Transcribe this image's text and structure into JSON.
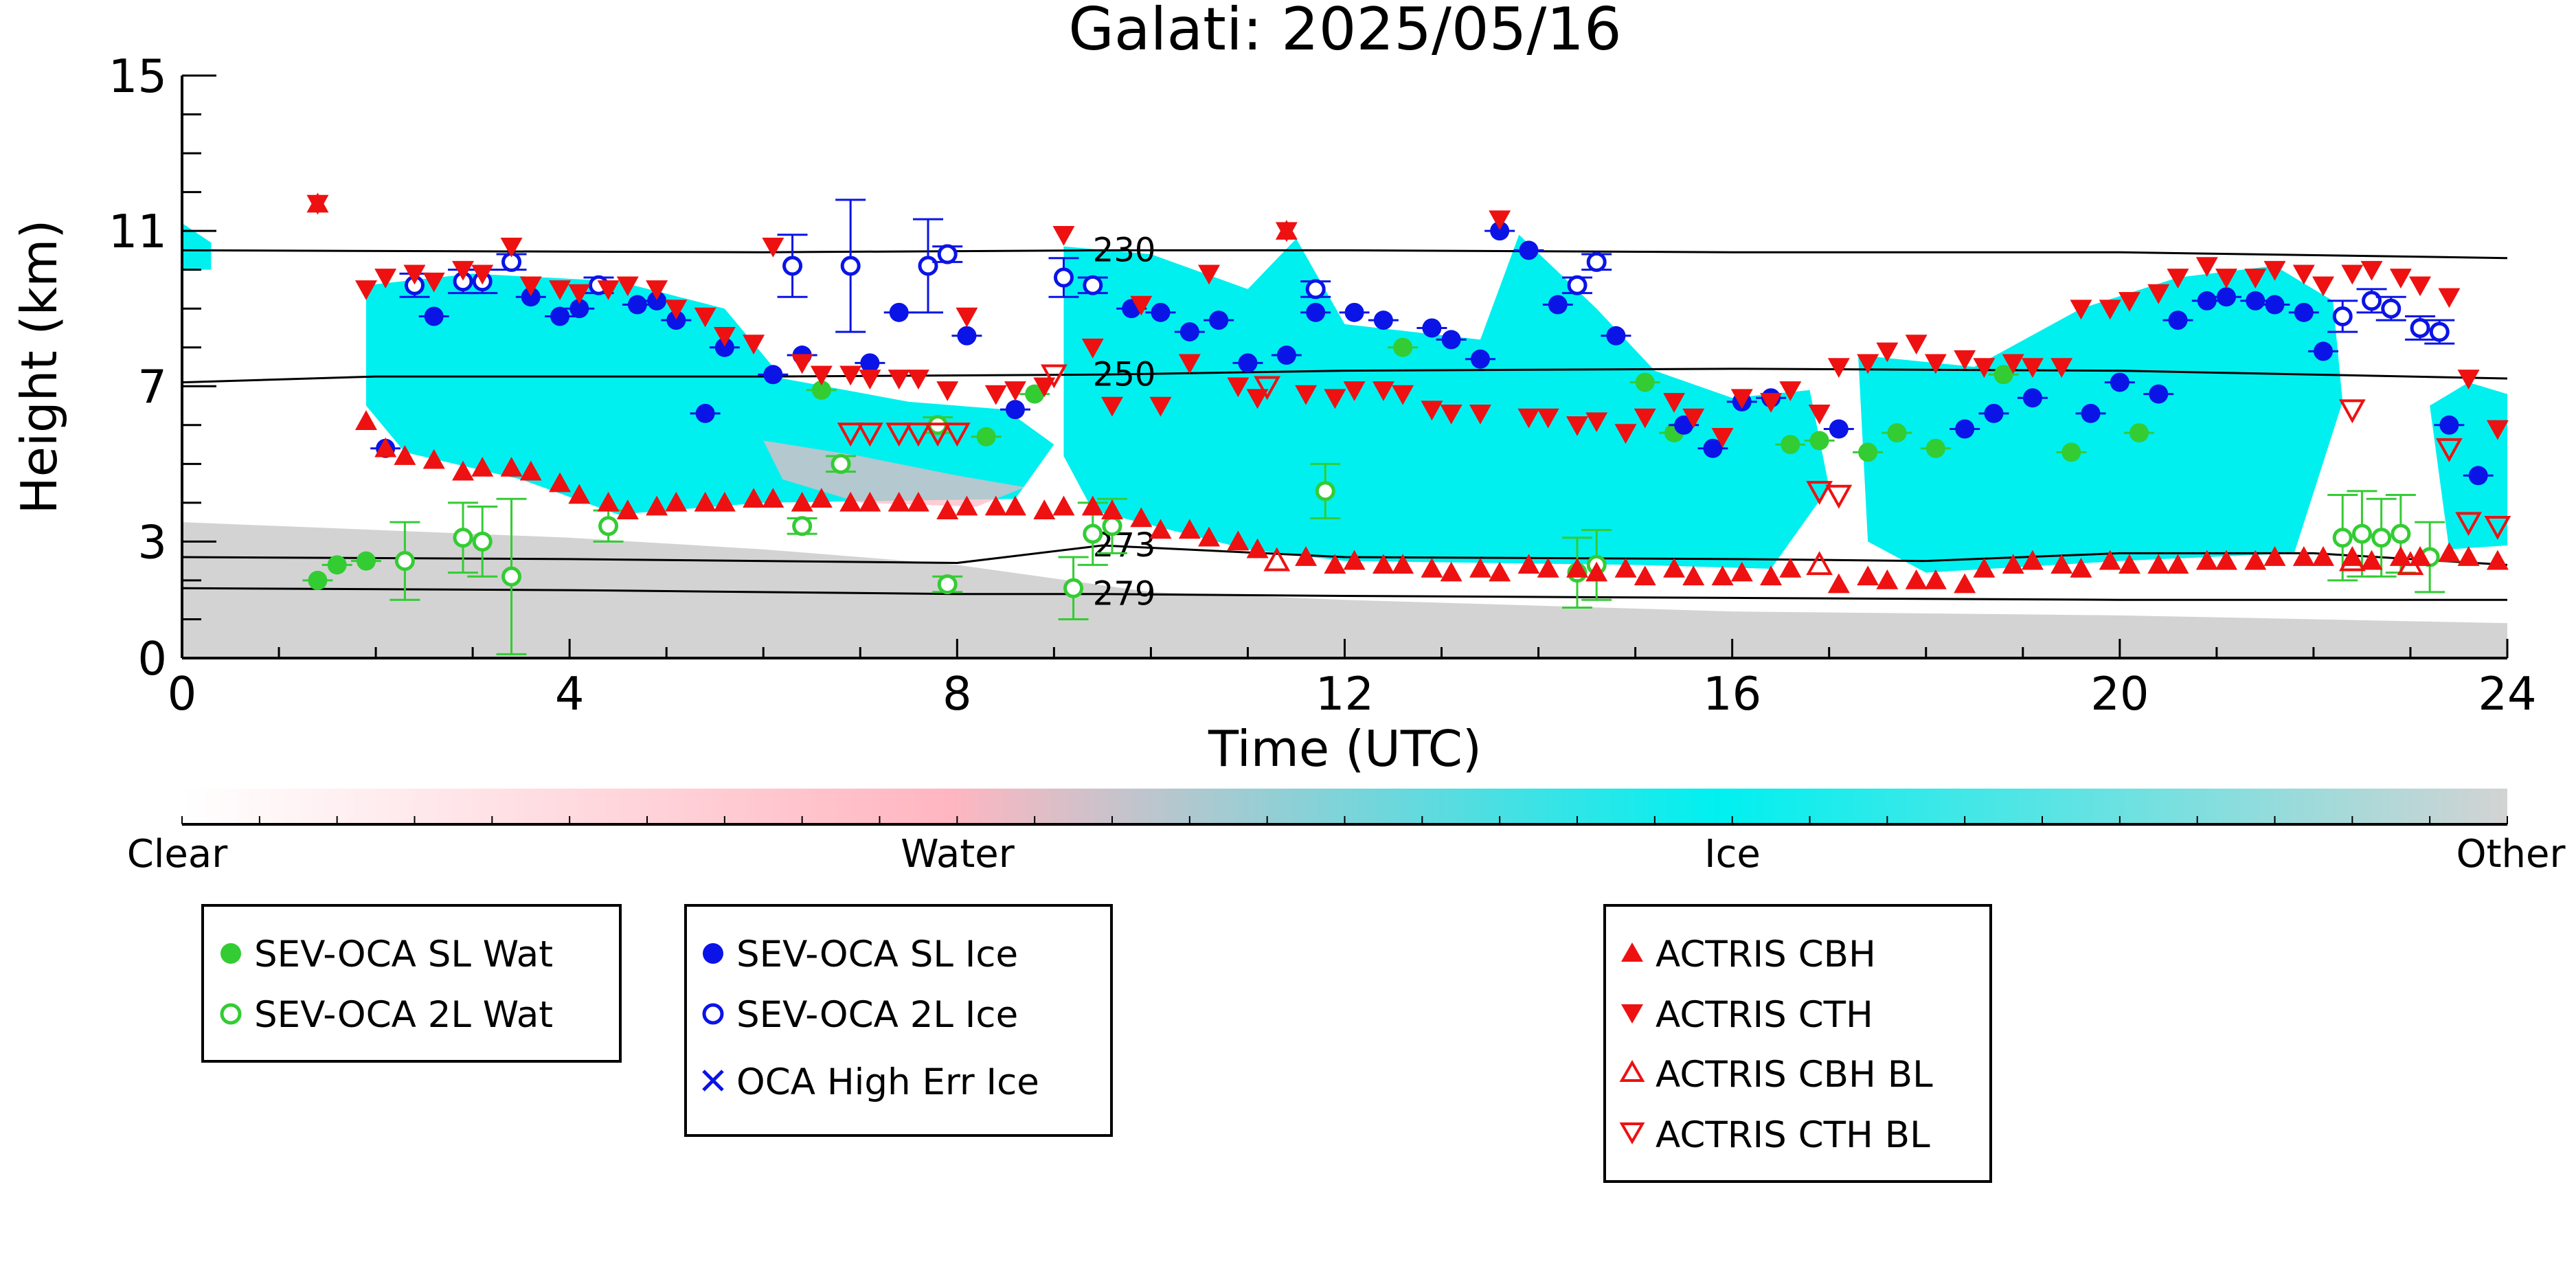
{
  "chart_data": {
    "type": "scatter",
    "title": "Galati: 2025/05/16",
    "xlabel": "Time (UTC)",
    "ylabel": "Height (km)",
    "xlim": [
      0,
      24
    ],
    "ylim": [
      0,
      15
    ],
    "xticks": [
      0,
      4,
      8,
      12,
      16,
      20,
      24
    ],
    "yticks": [
      0,
      3,
      7,
      11,
      15
    ],
    "colorbar": {
      "labels": [
        "Clear",
        "Water",
        "Ice",
        "Other"
      ],
      "colors": [
        "#ffffff",
        "#ffb6c1",
        "#00f0f0",
        "#d3d3d3"
      ]
    },
    "contours": [
      {
        "label": "230",
        "points": [
          [
            0,
            10.5
          ],
          [
            6,
            10.45
          ],
          [
            9.5,
            10.5
          ],
          [
            12,
            10.5
          ],
          [
            16,
            10.45
          ],
          [
            20,
            10.45
          ],
          [
            24,
            10.3
          ]
        ]
      },
      {
        "label": "250",
        "points": [
          [
            0,
            7.1
          ],
          [
            2,
            7.25
          ],
          [
            6,
            7.25
          ],
          [
            9.5,
            7.3
          ],
          [
            12,
            7.4
          ],
          [
            16,
            7.45
          ],
          [
            20,
            7.4
          ],
          [
            24,
            7.2
          ]
        ]
      },
      {
        "label": "273",
        "points": [
          [
            0,
            2.6
          ],
          [
            4,
            2.55
          ],
          [
            8,
            2.45
          ],
          [
            9.5,
            2.9
          ],
          [
            12,
            2.6
          ],
          [
            16,
            2.55
          ],
          [
            18,
            2.5
          ],
          [
            20,
            2.7
          ],
          [
            22,
            2.7
          ],
          [
            24,
            2.4
          ]
        ]
      },
      {
        "label": "279",
        "points": [
          [
            0,
            1.8
          ],
          [
            4,
            1.75
          ],
          [
            8,
            1.65
          ],
          [
            9.5,
            1.65
          ],
          [
            12,
            1.6
          ],
          [
            16,
            1.55
          ],
          [
            20,
            1.5
          ],
          [
            24,
            1.5
          ]
        ]
      }
    ],
    "series": [
      {
        "name": "SEV-OCA SL Wat",
        "color": "#33cc33",
        "marker": "circle-filled",
        "x": [
          1.4,
          1.6,
          1.9,
          6.6,
          8.3,
          8.8,
          12.6,
          15.1,
          15.4,
          16.6,
          16.9,
          17.4,
          17.7,
          18.1,
          18.8,
          19.5,
          20.2
        ],
        "y": [
          2.0,
          2.4,
          2.5,
          6.9,
          5.7,
          6.8,
          8.0,
          7.1,
          5.8,
          5.5,
          5.6,
          5.3,
          5.8,
          5.4,
          7.3,
          5.3,
          5.8
        ]
      },
      {
        "name": "SEV-OCA 2L Wat",
        "color": "#33cc33",
        "marker": "circle-open",
        "x": [
          2.3,
          2.9,
          3.1,
          3.4,
          4.4,
          6.4,
          6.8,
          7.8,
          7.9,
          9.2,
          9.4,
          9.6,
          11.8,
          14.4,
          14.6,
          22.3,
          22.5,
          22.7,
          22.9,
          23.2
        ],
        "y": [
          2.5,
          3.1,
          3.0,
          2.1,
          3.4,
          3.4,
          5.0,
          6.0,
          1.9,
          1.8,
          3.2,
          3.4,
          4.3,
          2.2,
          2.4,
          3.1,
          3.2,
          3.1,
          3.2,
          2.6
        ],
        "yerr": [
          1.0,
          0.9,
          0.9,
          2.0,
          0.4,
          0.2,
          0.2,
          0.2,
          0.2,
          0.8,
          0.8,
          0.7,
          0.7,
          0.9,
          0.9,
          1.1,
          1.1,
          1.0,
          1.0,
          0.9
        ]
      },
      {
        "name": "SEV-OCA SL Ice",
        "color": "#0a14e6",
        "marker": "circle-filled",
        "x": [
          2.1,
          2.6,
          3.6,
          3.9,
          4.1,
          4.7,
          4.9,
          5.1,
          5.4,
          5.6,
          6.1,
          6.4,
          7.1,
          7.4,
          8.1,
          8.6,
          9.8,
          10.1,
          10.4,
          10.7,
          11.0,
          11.4,
          11.7,
          12.1,
          12.4,
          12.9,
          13.1,
          13.4,
          13.6,
          13.9,
          14.2,
          14.8,
          15.5,
          15.8,
          16.1,
          16.4,
          17.1,
          18.4,
          18.7,
          19.1,
          19.7,
          20.0,
          20.4,
          20.6,
          20.9,
          21.1,
          21.4,
          21.6,
          21.9,
          22.1,
          23.4,
          23.7
        ],
        "y": [
          5.4,
          8.8,
          9.3,
          8.8,
          9.0,
          9.1,
          9.2,
          8.7,
          6.3,
          8.0,
          7.3,
          7.8,
          7.6,
          8.9,
          8.3,
          6.4,
          9.0,
          8.9,
          8.4,
          8.7,
          7.6,
          7.8,
          8.9,
          8.9,
          8.7,
          8.5,
          8.2,
          7.7,
          11.0,
          10.5,
          9.1,
          8.3,
          6.0,
          5.4,
          6.6,
          6.7,
          5.9,
          5.9,
          6.3,
          6.7,
          6.3,
          7.1,
          6.8,
          8.7,
          9.2,
          9.3,
          9.2,
          9.1,
          8.9,
          7.9,
          6.0,
          4.7
        ]
      },
      {
        "name": "SEV-OCA 2L Ice",
        "color": "#0a14e6",
        "marker": "circle-open",
        "x": [
          2.4,
          2.9,
          3.1,
          3.4,
          4.3,
          6.3,
          6.9,
          7.7,
          7.9,
          9.1,
          9.4,
          11.7,
          14.4,
          14.6,
          22.3,
          22.6,
          22.8,
          23.1,
          23.3
        ],
        "y": [
          9.6,
          9.7,
          9.7,
          10.2,
          9.6,
          10.1,
          10.1,
          10.1,
          10.4,
          9.8,
          9.6,
          9.5,
          9.6,
          10.2,
          8.8,
          9.2,
          9.0,
          8.5,
          8.4
        ],
        "yerr": [
          0.3,
          0.3,
          0.3,
          0.2,
          0.2,
          0.8,
          1.7,
          1.2,
          0.2,
          0.5,
          0.2,
          0.2,
          0.2,
          0.2,
          0.4,
          0.3,
          0.3,
          0.3,
          0.3
        ]
      },
      {
        "name": "OCA High Err Ice",
        "color": "#0a14e6",
        "marker": "x",
        "x": [],
        "y": []
      },
      {
        "name": "ACTRIS CBH",
        "color": "#ee1111",
        "marker": "triangle-up",
        "x": [
          1.4,
          1.9,
          2.1,
          2.3,
          2.6,
          2.9,
          3.1,
          3.4,
          3.6,
          3.9,
          4.1,
          4.4,
          4.6,
          4.9,
          5.1,
          5.4,
          5.6,
          5.9,
          6.1,
          6.4,
          6.6,
          6.9,
          7.1,
          7.4,
          7.6,
          7.9,
          8.1,
          8.4,
          8.6,
          8.9,
          9.1,
          9.4,
          9.6,
          9.9,
          10.1,
          10.4,
          10.6,
          10.9,
          11.1,
          11.4,
          11.6,
          11.9,
          12.1,
          12.4,
          12.6,
          12.9,
          13.1,
          13.4,
          13.6,
          13.9,
          14.1,
          14.4,
          14.6,
          14.9,
          15.1,
          15.4,
          15.6,
          15.9,
          16.1,
          16.4,
          16.6,
          17.1,
          17.4,
          17.6,
          17.9,
          18.1,
          18.4,
          18.6,
          18.9,
          19.1,
          19.4,
          19.6,
          19.9,
          20.1,
          20.4,
          20.6,
          20.9,
          21.1,
          21.4,
          21.6,
          21.9,
          22.1,
          22.4,
          22.6,
          22.9,
          23.1,
          23.4,
          23.6,
          23.9
        ],
        "y": [
          11.7,
          6.1,
          5.4,
          5.2,
          5.1,
          4.8,
          4.9,
          4.9,
          4.8,
          4.5,
          4.2,
          4.0,
          3.8,
          3.9,
          4.0,
          4.0,
          4.0,
          4.1,
          4.1,
          4.0,
          4.1,
          4.0,
          4.0,
          4.0,
          4.0,
          3.8,
          3.9,
          3.9,
          3.9,
          3.8,
          3.9,
          3.9,
          3.8,
          3.6,
          3.3,
          3.3,
          3.1,
          3.0,
          2.8,
          11.0,
          2.6,
          2.4,
          2.5,
          2.4,
          2.4,
          2.3,
          2.2,
          2.3,
          2.2,
          2.4,
          2.3,
          2.3,
          2.2,
          2.3,
          2.1,
          2.3,
          2.1,
          2.1,
          2.2,
          2.1,
          2.3,
          1.9,
          2.1,
          2.0,
          2.0,
          2.0,
          1.9,
          2.3,
          2.4,
          2.5,
          2.4,
          2.3,
          2.5,
          2.4,
          2.4,
          2.4,
          2.5,
          2.5,
          2.5,
          2.6,
          2.6,
          2.6,
          2.6,
          2.5,
          2.6,
          2.6,
          2.7,
          2.6,
          2.5
        ]
      },
      {
        "name": "ACTRIS CTH",
        "color": "#ee1111",
        "marker": "triangle-down",
        "x": [
          1.4,
          1.9,
          2.1,
          2.4,
          2.6,
          2.9,
          3.1,
          3.4,
          3.6,
          3.9,
          4.1,
          4.4,
          4.6,
          4.9,
          5.1,
          5.4,
          5.6,
          5.9,
          6.1,
          6.4,
          6.6,
          6.9,
          7.1,
          7.4,
          7.6,
          7.9,
          8.1,
          8.4,
          8.6,
          8.9,
          9.1,
          9.4,
          9.6,
          9.9,
          10.1,
          10.4,
          10.6,
          10.9,
          11.1,
          11.4,
          11.6,
          11.9,
          12.1,
          12.4,
          12.6,
          12.9,
          13.1,
          13.4,
          13.6,
          13.9,
          14.1,
          14.4,
          14.6,
          14.9,
          15.1,
          15.4,
          15.6,
          15.9,
          16.1,
          16.4,
          16.6,
          16.9,
          17.1,
          17.4,
          17.6,
          17.9,
          18.1,
          18.4,
          18.6,
          18.9,
          19.1,
          19.4,
          19.6,
          19.9,
          20.1,
          20.4,
          20.6,
          20.9,
          21.1,
          21.4,
          21.6,
          21.9,
          22.1,
          22.4,
          22.6,
          22.9,
          23.1,
          23.4,
          23.6,
          23.9
        ],
        "y": [
          11.7,
          9.5,
          9.8,
          9.9,
          9.7,
          10.0,
          9.9,
          10.6,
          9.6,
          9.5,
          9.4,
          9.5,
          9.6,
          9.5,
          9.0,
          8.8,
          8.3,
          8.1,
          10.6,
          7.6,
          7.3,
          7.3,
          7.2,
          7.2,
          7.2,
          6.9,
          8.8,
          6.8,
          6.9,
          7.0,
          10.9,
          8.0,
          6.5,
          9.1,
          6.5,
          7.6,
          9.9,
          7.0,
          6.7,
          11.0,
          6.8,
          6.7,
          6.9,
          6.9,
          6.8,
          6.4,
          6.3,
          6.3,
          11.3,
          6.2,
          6.2,
          6.0,
          6.1,
          5.8,
          6.2,
          6.6,
          6.2,
          5.7,
          6.7,
          6.6,
          6.9,
          6.3,
          7.5,
          7.6,
          7.9,
          8.1,
          7.6,
          7.7,
          7.5,
          7.6,
          7.5,
          7.5,
          9.0,
          9.0,
          9.2,
          9.4,
          9.8,
          10.1,
          9.8,
          9.8,
          10.0,
          9.9,
          9.6,
          9.9,
          10.0,
          9.8,
          9.6,
          9.3,
          7.2,
          5.9
        ]
      },
      {
        "name": "ACTRIS CBH BL",
        "color": "#ee1111",
        "marker": "triangle-up-open",
        "x": [
          11.3,
          16.9,
          22.4,
          23.0
        ],
        "y": [
          2.5,
          2.4,
          2.5,
          2.4
        ]
      },
      {
        "name": "ACTRIS CTH BL",
        "color": "#ee1111",
        "marker": "triangle-down-open",
        "x": [
          6.9,
          7.1,
          7.4,
          7.6,
          7.8,
          8.0,
          9.0,
          11.2,
          16.9,
          17.1,
          22.4,
          23.4,
          23.6,
          23.9
        ],
        "y": [
          5.8,
          5.8,
          5.8,
          5.8,
          5.8,
          5.8,
          7.3,
          7.0,
          4.3,
          4.2,
          6.4,
          5.4,
          3.5,
          3.4
        ]
      }
    ],
    "legends": [
      {
        "entries": [
          "SEV-OCA SL Wat",
          "SEV-OCA 2L Wat"
        ],
        "placement": "below-left"
      },
      {
        "entries": [
          "SEV-OCA SL Ice",
          "SEV-OCA 2L Ice",
          "OCA High Err Ice"
        ],
        "placement": "below-center-left"
      },
      {
        "entries": [
          "ACTRIS CBH",
          "ACTRIS CTH",
          "ACTRIS CBH BL",
          "ACTRIS CTH BL"
        ],
        "placement": "below-right"
      }
    ],
    "grid": false
  }
}
